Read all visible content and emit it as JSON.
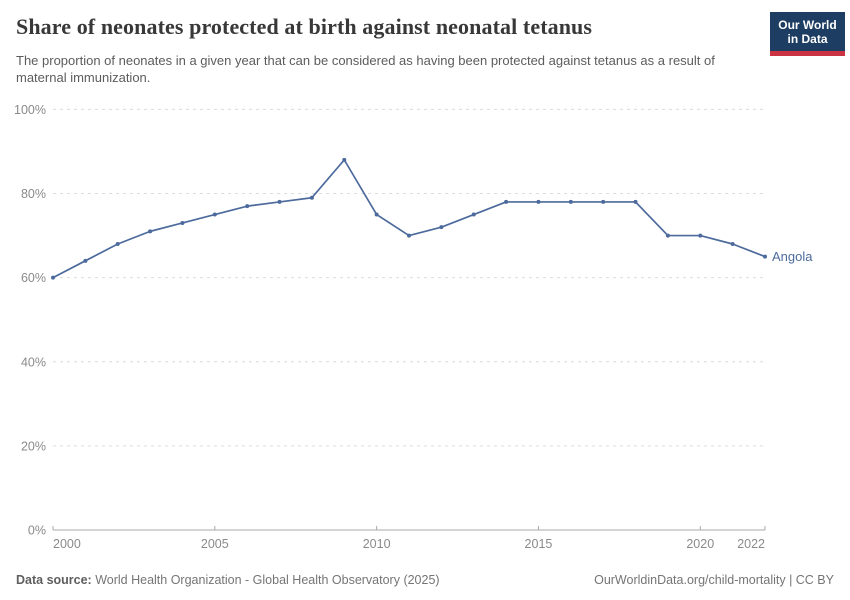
{
  "header": {
    "title": "Share of neonates protected at birth against neonatal tetanus",
    "subtitle": "The proportion of neonates in a given year that can be considered as having been protected against tetanus as a result of maternal immunization.",
    "logo": {
      "line1": "Our World",
      "line2": "in Data",
      "bg_color": "#1d3d63",
      "accent_color": "#cc3342"
    }
  },
  "chart_data": {
    "type": "line",
    "title": "Share of neonates protected at birth against neonatal tetanus",
    "xlabel": "",
    "ylabel": "",
    "xlim": [
      2000,
      2022
    ],
    "ylim": [
      0,
      100
    ],
    "grid": "horizontal-dashed",
    "legend_position": "end-of-line-label",
    "x_ticks": [
      2000,
      2005,
      2010,
      2015,
      2020,
      2022
    ],
    "y_ticks": [
      "0%",
      "20%",
      "40%",
      "60%",
      "80%",
      "100%"
    ],
    "series": [
      {
        "name": "Angola",
        "color": "#4C6A9C",
        "x": [
          2000,
          2001,
          2002,
          2003,
          2004,
          2005,
          2006,
          2007,
          2008,
          2009,
          2010,
          2011,
          2012,
          2013,
          2014,
          2015,
          2016,
          2017,
          2018,
          2019,
          2020,
          2021,
          2022
        ],
        "values": [
          60,
          64,
          68,
          71,
          73,
          75,
          77,
          78,
          79,
          88,
          75,
          70,
          72,
          75,
          78,
          78,
          78,
          78,
          78,
          70,
          70,
          68,
          65
        ]
      }
    ]
  },
  "footer": {
    "source_label": "Data source:",
    "source_text": " World Health Organization - Global Health Observatory (2025)",
    "right_text": "OurWorldinData.org/child-mortality | CC BY"
  }
}
